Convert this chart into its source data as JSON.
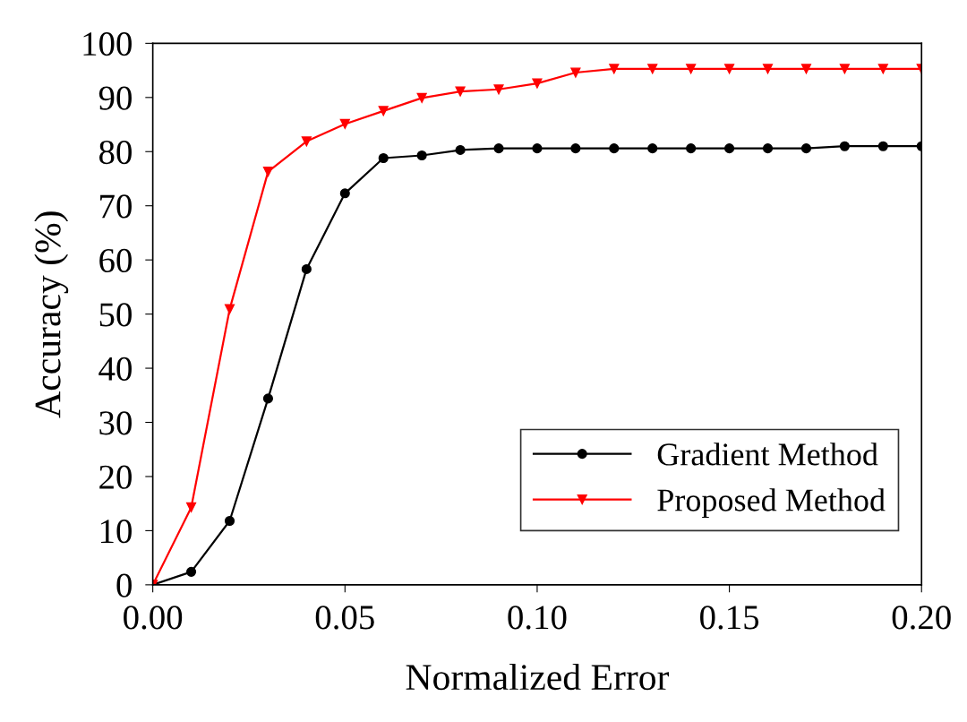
{
  "chart_data": {
    "type": "line",
    "xlabel": "Normalized Error",
    "ylabel": "Accuracy (%)",
    "x": [
      0,
      0.01,
      0.02,
      0.03,
      0.04,
      0.05,
      0.06,
      0.07,
      0.08,
      0.09,
      0.1,
      0.11,
      0.12,
      0.13,
      0.14,
      0.15,
      0.16,
      0.17,
      0.18,
      0.19,
      0.2
    ],
    "series": [
      {
        "name": "Gradient Method",
        "color": "#000000",
        "marker": "circle",
        "values": [
          0,
          2.4,
          11.8,
          34.4,
          58.3,
          72.3,
          78.8,
          79.3,
          80.3,
          80.6,
          80.6,
          80.6,
          80.6,
          80.6,
          80.6,
          80.6,
          80.6,
          80.6,
          81.0,
          81.0,
          81.0
        ]
      },
      {
        "name": "Proposed Method",
        "color": "#ff0000",
        "marker": "triangle",
        "values": [
          0,
          14.3,
          50.9,
          76.3,
          81.9,
          85.1,
          87.5,
          89.9,
          91.1,
          91.5,
          92.6,
          94.6,
          95.3,
          95.3,
          95.3,
          95.3,
          95.3,
          95.3,
          95.3,
          95.3,
          95.3
        ]
      }
    ],
    "xlim": [
      0,
      0.2
    ],
    "xticks": [
      {
        "value": 0,
        "label": "0.00"
      },
      {
        "value": 0.05,
        "label": "0.05"
      },
      {
        "value": 0.1,
        "label": "0.10"
      },
      {
        "value": 0.15,
        "label": "0.15"
      },
      {
        "value": 0.2,
        "label": "0.20"
      }
    ],
    "ylim": [
      0,
      100
    ],
    "yticks": [
      0,
      10,
      20,
      30,
      40,
      50,
      60,
      70,
      80,
      90,
      100
    ],
    "grid": false,
    "legend": "bottom right",
    "line_style": "solid"
  }
}
